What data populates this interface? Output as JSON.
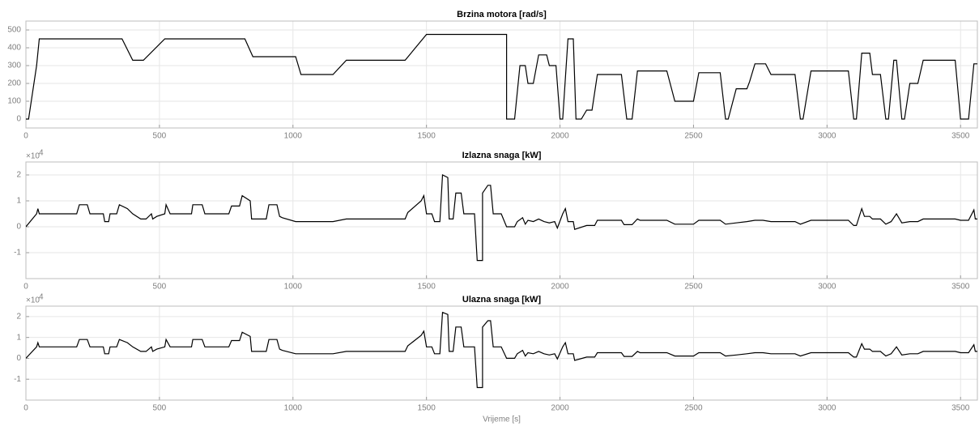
{
  "chart_data": [
    {
      "type": "line",
      "title": "Brzina motora [rad/s]",
      "color": "#000000",
      "grid": true,
      "xlim": [
        0,
        3563
      ],
      "xticks": [
        0,
        500,
        1000,
        1500,
        2000,
        2500,
        3000,
        3500
      ],
      "ylim": [
        -50,
        550
      ],
      "yticks": [
        0,
        100,
        200,
        300,
        400,
        500
      ],
      "x": [
        0,
        10,
        40,
        50,
        360,
        400,
        440,
        520,
        820,
        850,
        1010,
        1030,
        1150,
        1200,
        1420,
        1500,
        1800,
        1800,
        1830,
        1850,
        1870,
        1880,
        1900,
        1920,
        1950,
        1960,
        1985,
        2000,
        2010,
        2030,
        2050,
        2060,
        2080,
        2100,
        2120,
        2140,
        2230,
        2250,
        2270,
        2290,
        2400,
        2430,
        2500,
        2520,
        2600,
        2620,
        2630,
        2660,
        2700,
        2710,
        2730,
        2770,
        2790,
        2880,
        2900,
        2910,
        2940,
        3080,
        3100,
        3110,
        3130,
        3160,
        3170,
        3200,
        3220,
        3230,
        3250,
        3260,
        3280,
        3290,
        3310,
        3340,
        3360,
        3480,
        3500,
        3530,
        3550,
        3563
      ],
      "values": [
        0,
        0,
        300,
        450,
        450,
        330,
        330,
        450,
        450,
        350,
        350,
        250,
        250,
        330,
        330,
        475,
        475,
        0,
        0,
        300,
        300,
        200,
        200,
        360,
        360,
        300,
        300,
        0,
        0,
        450,
        450,
        0,
        0,
        50,
        50,
        250,
        250,
        0,
        0,
        270,
        270,
        100,
        100,
        260,
        260,
        0,
        0,
        170,
        170,
        210,
        310,
        310,
        250,
        250,
        0,
        0,
        270,
        270,
        0,
        0,
        370,
        370,
        250,
        250,
        0,
        0,
        330,
        330,
        0,
        0,
        200,
        200,
        330,
        330,
        0,
        0,
        310,
        310
      ]
    },
    {
      "type": "line",
      "title": "Izlazna snaga [kW]",
      "color": "#000000",
      "grid": true,
      "exponent_base": "×10",
      "exponent_power": "4",
      "xlim": [
        0,
        3563
      ],
      "xticks": [
        0,
        500,
        1000,
        1500,
        2000,
        2500,
        3000,
        3500
      ],
      "ylim": [
        -20000,
        25000
      ],
      "yticks": [
        {
          "value": -10000,
          "label": "-1"
        },
        0,
        {
          "value": 10000,
          "label": "1"
        },
        {
          "value": 20000,
          "label": "2"
        }
      ],
      "x": [
        0,
        40,
        45,
        50,
        190,
        200,
        230,
        240,
        290,
        295,
        310,
        315,
        340,
        350,
        380,
        400,
        430,
        450,
        470,
        475,
        490,
        520,
        525,
        540,
        620,
        625,
        660,
        670,
        760,
        770,
        800,
        810,
        840,
        845,
        900,
        910,
        940,
        950,
        960,
        1010,
        1150,
        1200,
        1420,
        1430,
        1480,
        1490,
        1500,
        1520,
        1530,
        1550,
        1560,
        1580,
        1585,
        1600,
        1610,
        1630,
        1640,
        1680,
        1690,
        1710,
        1710,
        1730,
        1740,
        1750,
        1780,
        1800,
        1830,
        1840,
        1860,
        1870,
        1880,
        1900,
        1920,
        1940,
        1960,
        1980,
        1990,
        2010,
        2020,
        2030,
        2050,
        2055,
        2100,
        2130,
        2140,
        2230,
        2240,
        2270,
        2290,
        2300,
        2400,
        2430,
        2500,
        2520,
        2600,
        2620,
        2660,
        2700,
        2730,
        2760,
        2790,
        2880,
        2900,
        2940,
        3080,
        3100,
        3110,
        3130,
        3140,
        3160,
        3170,
        3200,
        3220,
        3240,
        3260,
        3280,
        3310,
        3340,
        3360,
        3480,
        3500,
        3530,
        3550,
        3555,
        3563
      ],
      "values": [
        0,
        5000,
        7000,
        5000,
        5000,
        8500,
        8500,
        5000,
        5000,
        2000,
        2000,
        5000,
        5000,
        8500,
        7000,
        5000,
        3000,
        3000,
        5000,
        3000,
        4000,
        5000,
        8500,
        5000,
        5000,
        8500,
        8500,
        5000,
        5000,
        8000,
        8000,
        12000,
        10000,
        3000,
        3000,
        8500,
        8500,
        4000,
        3500,
        2000,
        2000,
        3000,
        3000,
        5500,
        10000,
        12000,
        5000,
        5000,
        2000,
        2000,
        20000,
        19000,
        3000,
        3000,
        13000,
        13000,
        5000,
        5000,
        -13000,
        -13000,
        13000,
        16000,
        16000,
        5000,
        5000,
        0,
        0,
        2000,
        3500,
        1000,
        2500,
        2000,
        3000,
        2000,
        1500,
        2000,
        -500,
        5000,
        7000,
        2000,
        2000,
        -1000,
        500,
        500,
        2500,
        2500,
        800,
        800,
        3000,
        2500,
        2500,
        1000,
        1000,
        2500,
        2500,
        1000,
        1500,
        2000,
        2500,
        2500,
        2000,
        2000,
        1000,
        2500,
        2500,
        500,
        500,
        7000,
        4000,
        4000,
        3000,
        3000,
        1000,
        2000,
        5000,
        1500,
        2000,
        2000,
        3000,
        3000,
        2500,
        2500,
        6500,
        3000,
        3000
      ]
    },
    {
      "type": "line",
      "title": "Ulazna snaga [kW]",
      "xlabel": "Vrijeme [s]",
      "color": "#000000",
      "grid": true,
      "exponent_base": "×10",
      "exponent_power": "4",
      "xlim": [
        0,
        3563
      ],
      "xticks": [
        0,
        500,
        1000,
        1500,
        2000,
        2500,
        3000,
        3500
      ],
      "ylim": [
        -20000,
        25000
      ],
      "yticks": [
        {
          "value": -10000,
          "label": "-1"
        },
        0,
        {
          "value": 10000,
          "label": "1"
        },
        {
          "value": 20000,
          "label": "2"
        }
      ],
      "x": [
        0,
        40,
        45,
        50,
        190,
        200,
        230,
        240,
        290,
        295,
        310,
        315,
        340,
        350,
        380,
        400,
        430,
        450,
        470,
        475,
        490,
        520,
        525,
        540,
        620,
        625,
        660,
        670,
        760,
        770,
        800,
        810,
        840,
        845,
        900,
        910,
        940,
        950,
        960,
        1010,
        1150,
        1200,
        1420,
        1430,
        1480,
        1490,
        1500,
        1520,
        1530,
        1550,
        1560,
        1580,
        1585,
        1600,
        1610,
        1630,
        1640,
        1680,
        1690,
        1710,
        1710,
        1730,
        1740,
        1750,
        1780,
        1800,
        1830,
        1840,
        1860,
        1870,
        1880,
        1900,
        1920,
        1940,
        1960,
        1980,
        1990,
        2010,
        2020,
        2030,
        2050,
        2055,
        2100,
        2130,
        2140,
        2230,
        2240,
        2270,
        2290,
        2300,
        2400,
        2430,
        2500,
        2520,
        2600,
        2620,
        2660,
        2700,
        2730,
        2760,
        2790,
        2880,
        2900,
        2940,
        3080,
        3100,
        3110,
        3130,
        3140,
        3160,
        3170,
        3200,
        3220,
        3240,
        3260,
        3280,
        3310,
        3340,
        3360,
        3480,
        3500,
        3530,
        3550,
        3555,
        3563
      ],
      "values": [
        0,
        5500,
        7500,
        5500,
        5500,
        9000,
        9000,
        5500,
        5500,
        2200,
        2200,
        5500,
        5500,
        9000,
        7500,
        5500,
        3300,
        3300,
        5500,
        3300,
        4400,
        5500,
        9000,
        5500,
        5500,
        9000,
        9000,
        5500,
        5500,
        8500,
        8500,
        12500,
        10500,
        3300,
        3300,
        9000,
        9000,
        4400,
        3800,
        2200,
        2200,
        3300,
        3300,
        6000,
        11000,
        13000,
        5500,
        5500,
        2200,
        2200,
        22000,
        21000,
        3300,
        3300,
        15000,
        15000,
        5500,
        5500,
        -14000,
        -14000,
        15000,
        18000,
        18000,
        5500,
        5500,
        0,
        0,
        2200,
        3800,
        1100,
        2700,
        2200,
        3300,
        2200,
        1600,
        2200,
        -300,
        5500,
        7500,
        2200,
        2200,
        -1000,
        600,
        600,
        2700,
        2700,
        900,
        900,
        3300,
        2700,
        2700,
        1100,
        1100,
        2700,
        2700,
        1100,
        1600,
        2200,
        2700,
        2700,
        2200,
        2200,
        1100,
        2700,
        2700,
        600,
        600,
        7000,
        4400,
        4400,
        3300,
        3300,
        1100,
        2200,
        5500,
        1600,
        2200,
        2200,
        3300,
        3300,
        2700,
        2700,
        6500,
        3300,
        3300
      ]
    }
  ]
}
